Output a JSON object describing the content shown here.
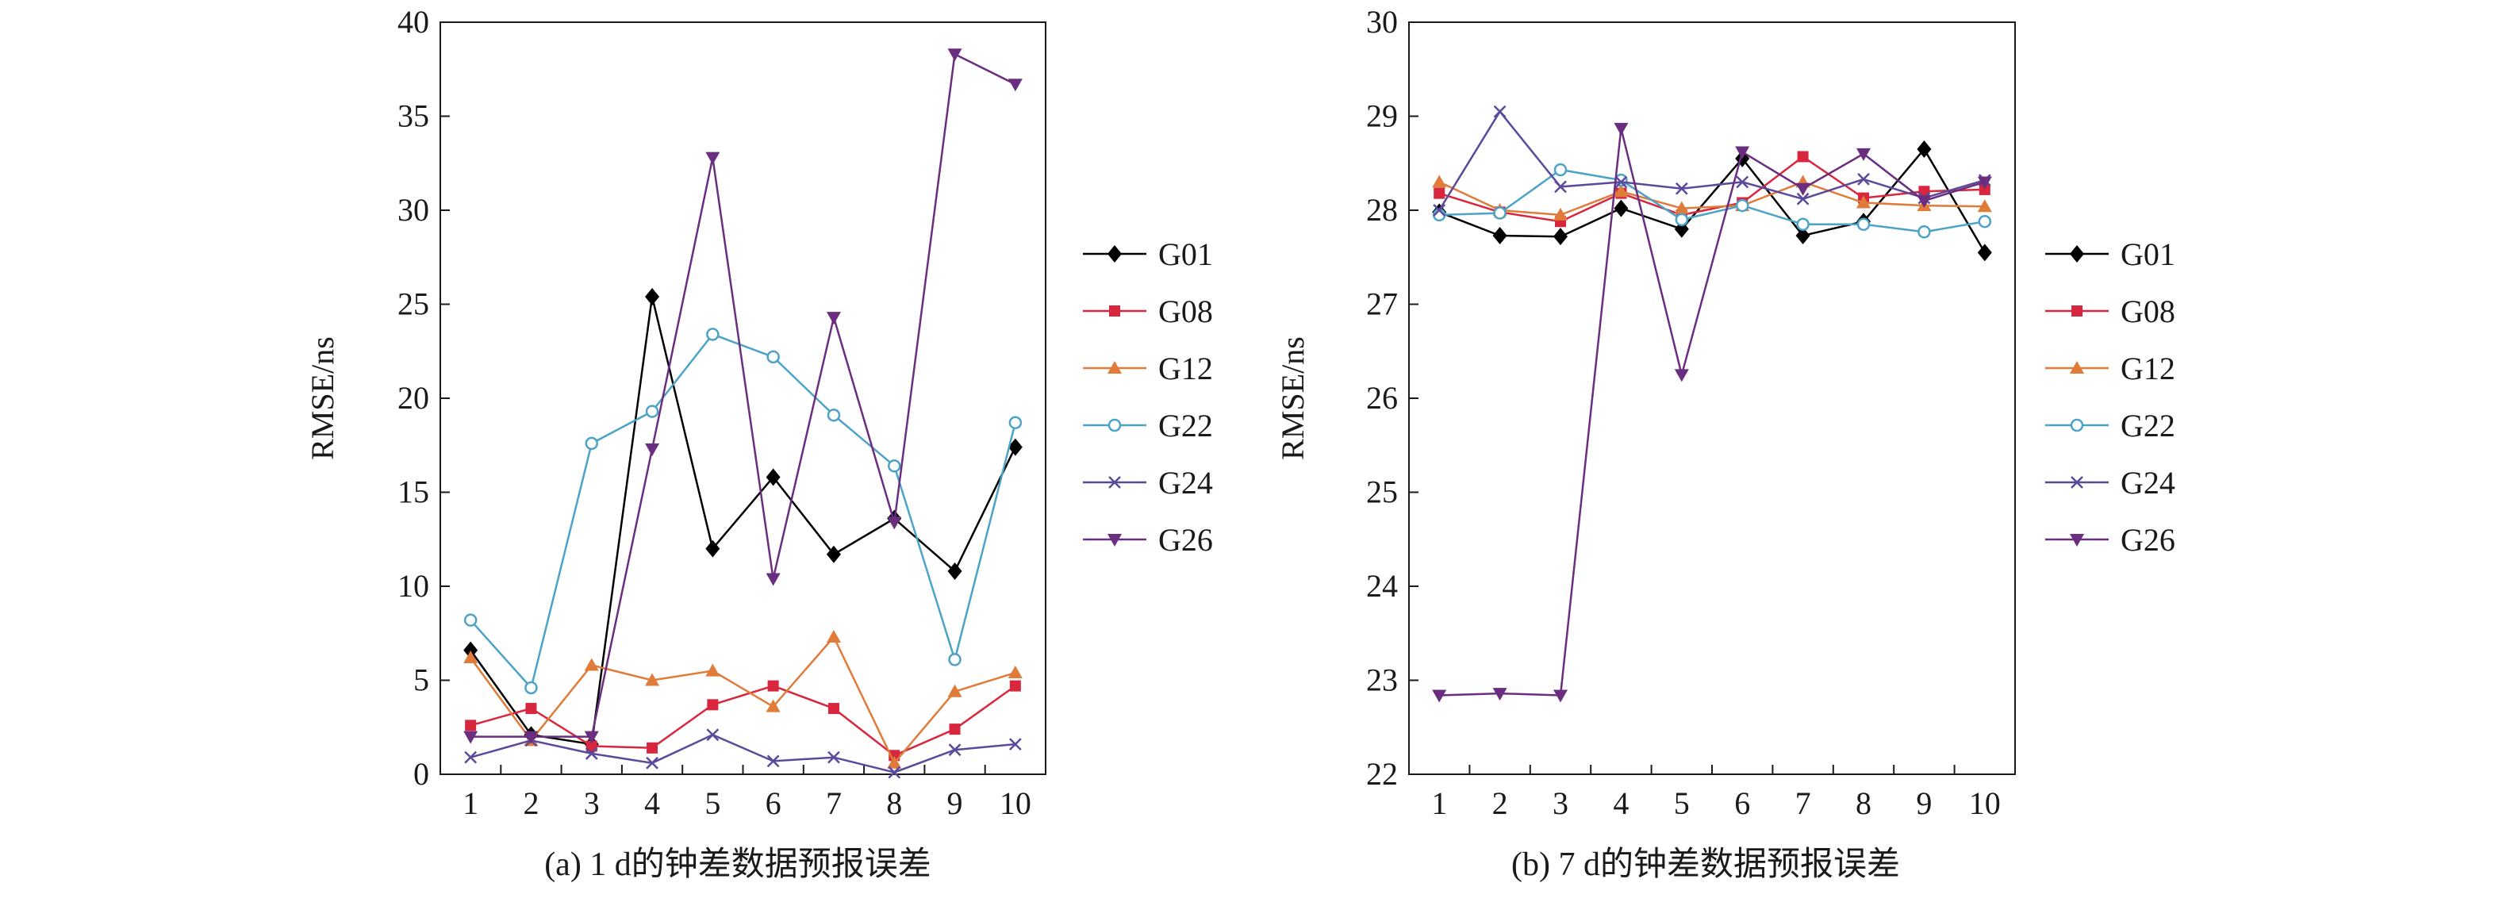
{
  "chart_data": [
    {
      "type": "line",
      "caption": "(a) 1 d的钟差数据预报误差",
      "title": "",
      "xlabel": "",
      "ylabel": "RMSE/ns",
      "x": [
        1,
        2,
        3,
        4,
        5,
        6,
        7,
        8,
        9,
        10
      ],
      "xticks": [
        "1",
        "2",
        "3",
        "4",
        "5",
        "6",
        "7",
        "8",
        "9",
        "10"
      ],
      "ylim": [
        0,
        40
      ],
      "yticks": [
        "0",
        "5",
        "10",
        "15",
        "20",
        "25",
        "30",
        "35",
        "40"
      ],
      "grid": false,
      "legend_position": "right",
      "series": [
        {
          "name": "G01",
          "color": "#000000",
          "marker": "diamond",
          "values": [
            6.6,
            2.1,
            1.6,
            25.4,
            12.0,
            15.8,
            11.7,
            13.6,
            10.8,
            17.4
          ]
        },
        {
          "name": "G08",
          "color": "#d7263d",
          "marker": "square",
          "values": [
            2.6,
            3.5,
            1.5,
            1.4,
            3.7,
            4.7,
            3.5,
            1.0,
            2.4,
            4.7
          ]
        },
        {
          "name": "G12",
          "color": "#e07b39",
          "marker": "triangle-up",
          "values": [
            6.2,
            1.8,
            5.8,
            5.0,
            5.5,
            3.6,
            7.3,
            0.6,
            4.4,
            5.4
          ]
        },
        {
          "name": "G22",
          "color": "#4ba3c7",
          "marker": "circle-open",
          "values": [
            8.2,
            4.6,
            17.6,
            19.3,
            23.4,
            22.2,
            19.1,
            16.4,
            6.1,
            18.7
          ]
        },
        {
          "name": "G24",
          "color": "#5b4a9c",
          "marker": "x",
          "values": [
            0.9,
            1.8,
            1.1,
            0.6,
            2.1,
            0.7,
            0.9,
            0.1,
            1.3,
            1.6
          ]
        },
        {
          "name": "G26",
          "color": "#6b2d7f",
          "marker": "triangle-down",
          "values": [
            2.0,
            2.0,
            2.0,
            17.3,
            32.8,
            10.4,
            24.3,
            13.4,
            38.3,
            36.7
          ]
        }
      ]
    },
    {
      "type": "line",
      "caption": "(b) 7 d的钟差数据预报误差",
      "title": "",
      "xlabel": "",
      "ylabel": "RMSE/ns",
      "x": [
        1,
        2,
        3,
        4,
        5,
        6,
        7,
        8,
        9,
        10
      ],
      "xticks": [
        "1",
        "2",
        "3",
        "4",
        "5",
        "6",
        "7",
        "8",
        "9",
        "10"
      ],
      "ylim": [
        22,
        30
      ],
      "yticks": [
        "22",
        "23",
        "24",
        "25",
        "26",
        "27",
        "28",
        "29",
        "30"
      ],
      "grid": false,
      "legend_position": "right",
      "series": [
        {
          "name": "G01",
          "color": "#000000",
          "marker": "diamond",
          "values": [
            27.98,
            27.73,
            27.72,
            28.02,
            27.8,
            28.55,
            27.73,
            27.88,
            28.65,
            27.55
          ]
        },
        {
          "name": "G08",
          "color": "#d7263d",
          "marker": "square",
          "values": [
            28.18,
            27.98,
            27.88,
            28.18,
            27.95,
            28.08,
            28.57,
            28.13,
            28.2,
            28.22
          ]
        },
        {
          "name": "G12",
          "color": "#e07b39",
          "marker": "triangle-up",
          "values": [
            28.3,
            28.0,
            27.95,
            28.2,
            28.02,
            28.05,
            28.3,
            28.08,
            28.05,
            28.04
          ]
        },
        {
          "name": "G22",
          "color": "#4ba3c7",
          "marker": "circle-open",
          "values": [
            27.95,
            27.97,
            28.43,
            28.32,
            27.9,
            28.05,
            27.85,
            27.85,
            27.77,
            27.88
          ]
        },
        {
          "name": "G24",
          "color": "#5b4a9c",
          "marker": "x",
          "values": [
            28.0,
            29.05,
            28.25,
            28.3,
            28.23,
            28.3,
            28.12,
            28.33,
            28.13,
            28.32
          ]
        },
        {
          "name": "G26",
          "color": "#6b2d7f",
          "marker": "triangle-down",
          "values": [
            22.84,
            22.86,
            22.84,
            28.87,
            26.25,
            28.62,
            28.23,
            28.6,
            28.1,
            28.3
          ]
        }
      ]
    }
  ]
}
